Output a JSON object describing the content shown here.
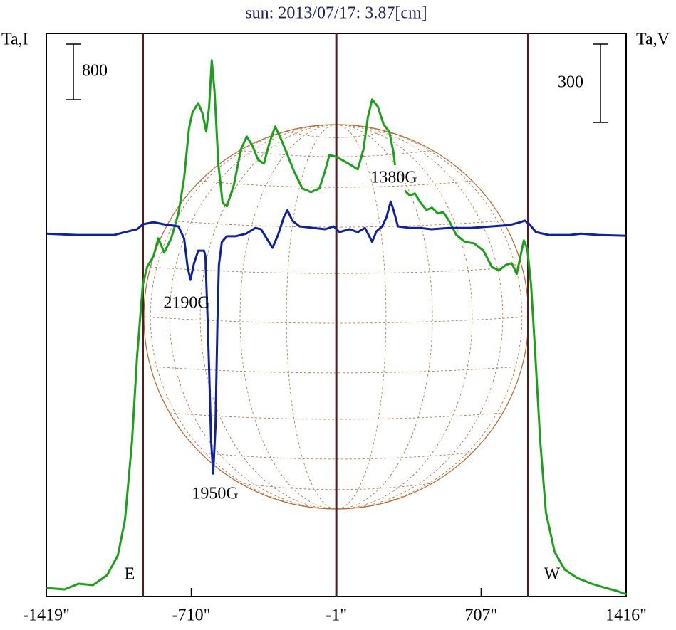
{
  "chart_data": {
    "type": "line",
    "title": "sun: 2013/07/17: 3.87[cm]",
    "ylabel": "Ta,I",
    "y2label": "Ta,V",
    "xlim": [
      -1419,
      1416
    ],
    "xticks": [
      {
        "value": -1419,
        "label": "-1419\""
      },
      {
        "value": -710,
        "label": "-710\""
      },
      {
        "value": -1,
        "label": "-1\""
      },
      {
        "value": 707,
        "label": "707\""
      },
      {
        "value": 1416,
        "label": "1416\""
      }
    ],
    "ylim": [
      0,
      8110
    ],
    "y2lim": [
      -1385,
      772
    ],
    "scale_bars": [
      {
        "value": 800,
        "axis": "y"
      },
      {
        "value": 300,
        "axis": "y2"
      }
    ],
    "vlines": [
      -947,
      -1,
      937
    ],
    "annotations": [
      "E",
      "W",
      "1380G",
      "2190G",
      "1950G"
    ],
    "series": [
      {
        "color": "#1aa01a",
        "axis": "y",
        "x": [
          -1418,
          -1330,
          -1261,
          -1191,
          -1122,
          -1069,
          -1034,
          -1000,
          -975,
          -947,
          -926,
          -895,
          -871,
          -843,
          -808,
          -773,
          -745,
          -721,
          -704,
          -676,
          -655,
          -637,
          -623,
          -610,
          -596,
          -578,
          -557,
          -536,
          -502,
          -467,
          -439,
          -411,
          -383,
          -355,
          -327,
          -300,
          -272,
          -244,
          -209,
          -167,
          -125,
          -84,
          -56,
          -35,
          -7,
          28,
          70,
          104,
          132,
          153,
          174,
          202,
          230,
          258,
          279,
          286,
          310,
          334,
          359,
          383,
          411,
          439,
          467,
          495,
          522,
          550,
          585,
          627,
          672,
          718,
          759,
          794,
          829,
          857,
          881,
          899,
          916,
          933,
          951,
          968,
          996,
          1024,
          1066,
          1115,
          1177,
          1247,
          1317,
          1369,
          1418
        ],
        "values": [
          123,
          103,
          185,
          164,
          308,
          595,
          1108,
          2236,
          3467,
          4492,
          4749,
          4902,
          5159,
          4954,
          5159,
          5518,
          6031,
          6748,
          6974,
          7107,
          6954,
          6697,
          7056,
          7723,
          7261,
          6236,
          5672,
          5620,
          5928,
          6441,
          6625,
          6492,
          6287,
          6236,
          6543,
          6769,
          6595,
          6390,
          6133,
          5877,
          5825,
          5877,
          6133,
          6359,
          6338,
          6287,
          6215,
          6154,
          6441,
          6902,
          7159,
          7056,
          6800,
          6697,
          6390,
          6215,
          null,
          5846,
          5774,
          5805,
          5672,
          5569,
          5600,
          5518,
          5538,
          5415,
          5210,
          5108,
          5087,
          4984,
          4749,
          4697,
          4779,
          4800,
          4646,
          4902,
          5128,
          5005,
          4492,
          3672,
          2236,
          1210,
          646,
          390,
          267,
          185,
          123,
          82,
          31
        ]
      },
      {
        "color": "#1020a0",
        "axis": "y2",
        "x": [
          -1418,
          -1271,
          -1087,
          -1034,
          -975,
          -947,
          -895,
          -843,
          -773,
          -745,
          -728,
          -714,
          -697,
          -676,
          -648,
          -641,
          -630,
          -623,
          -613,
          -603,
          -592,
          -582,
          -575,
          -561,
          -536,
          -495,
          -442,
          -397,
          -369,
          -341,
          -313,
          -286,
          -258,
          -240,
          -216,
          -181,
          -111,
          -56,
          -14,
          14,
          63,
          104,
          139,
          157,
          174,
          195,
          223,
          244,
          265,
          279,
          300,
          359,
          411,
          463,
          550,
          655,
          759,
          846,
          899,
          920,
          940,
          975,
          1038,
          1142,
          1195,
          1282,
          1418
        ],
        "values": [
          5,
          0,
          0,
          11,
          22,
          41,
          49,
          41,
          33,
          -14,
          -123,
          -172,
          -109,
          -60,
          -60,
          -82,
          -327,
          -518,
          -791,
          -914,
          -736,
          -327,
          -115,
          -27,
          -5,
          -5,
          5,
          27,
          22,
          -14,
          -49,
          0,
          68,
          95,
          55,
          33,
          27,
          22,
          33,
          11,
          22,
          11,
          27,
          0,
          -27,
          14,
          33,
          68,
          128,
          95,
          33,
          27,
          27,
          22,
          27,
          27,
          33,
          38,
          49,
          55,
          44,
          11,
          0,
          0,
          5,
          0,
          -3
        ]
      }
    ]
  }
}
